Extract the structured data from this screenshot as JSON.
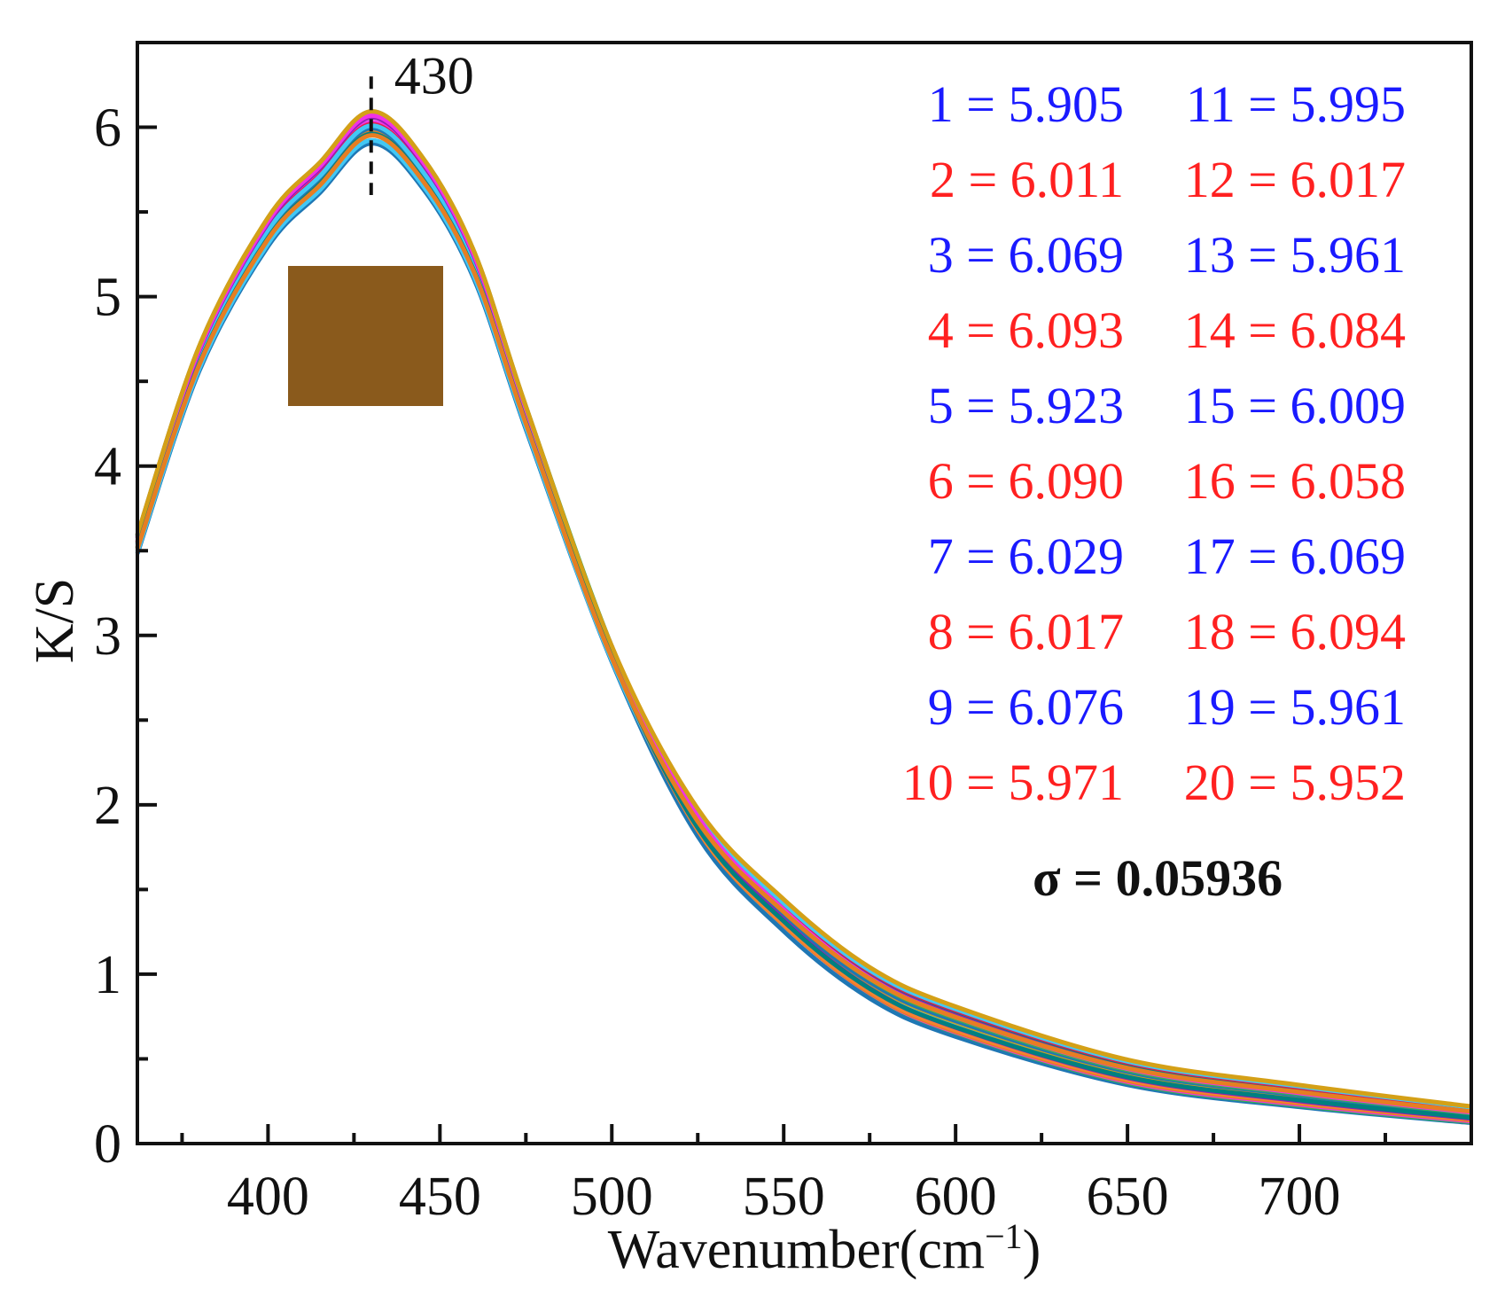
{
  "chart_data": {
    "type": "line",
    "title": "",
    "xlabel": "Wavenumber(cm",
    "xlabel_superscript": "−1",
    "xlabel_close": ")",
    "ylabel": "K/S",
    "xlim": [
      362,
      750
    ],
    "ylim": [
      0,
      6.5
    ],
    "x_ticks": [
      400,
      450,
      500,
      550,
      600,
      650,
      700
    ],
    "y_ticks": [
      0,
      1,
      2,
      3,
      4,
      5,
      6
    ],
    "x_minor_step": 25,
    "y_minor_step": 0.5,
    "grid": false,
    "peak_annotation": {
      "x": 430,
      "label": "430"
    },
    "sigma_label": "σ = 0.05936",
    "inset_swatch": {
      "description": "fabric color sample",
      "color": "#8a5a1c"
    },
    "x": [
      362,
      380,
      400,
      415,
      430,
      445,
      460,
      475,
      500,
      525,
      550,
      575,
      600,
      650,
      700,
      750
    ],
    "base_shape": [
      3.55,
      4.65,
      5.4,
      5.72,
      6.02,
      5.75,
      5.2,
      4.3,
      2.9,
      1.9,
      1.35,
      0.95,
      0.72,
      0.42,
      0.28,
      0.17
    ],
    "series": [
      {
        "name": "1",
        "peak": 5.905,
        "color": "#1a1aff"
      },
      {
        "name": "2",
        "peak": 6.011,
        "color": "#ff2020"
      },
      {
        "name": "3",
        "peak": 6.069,
        "color": "#1a1aff"
      },
      {
        "name": "4",
        "peak": 6.093,
        "color": "#ff2020"
      },
      {
        "name": "5",
        "peak": 5.923,
        "color": "#1a1aff"
      },
      {
        "name": "6",
        "peak": 6.09,
        "color": "#ff2020"
      },
      {
        "name": "7",
        "peak": 6.029,
        "color": "#1a1aff"
      },
      {
        "name": "8",
        "peak": 6.017,
        "color": "#ff2020"
      },
      {
        "name": "9",
        "peak": 6.076,
        "color": "#1a1aff"
      },
      {
        "name": "10",
        "peak": 5.971,
        "color": "#ff2020"
      },
      {
        "name": "11",
        "peak": 5.995,
        "color": "#1a1aff"
      },
      {
        "name": "12",
        "peak": 6.017,
        "color": "#ff2020"
      },
      {
        "name": "13",
        "peak": 5.961,
        "color": "#1a1aff"
      },
      {
        "name": "14",
        "peak": 6.084,
        "color": "#ff2020"
      },
      {
        "name": "15",
        "peak": 6.009,
        "color": "#1a1aff"
      },
      {
        "name": "16",
        "peak": 6.058,
        "color": "#ff2020"
      },
      {
        "name": "17",
        "peak": 6.069,
        "color": "#1a1aff"
      },
      {
        "name": "18",
        "peak": 6.094,
        "color": "#ff2020"
      },
      {
        "name": "19",
        "peak": 5.961,
        "color": "#1a1aff"
      },
      {
        "name": "20",
        "peak": 5.952,
        "color": "#ff2020"
      }
    ],
    "legend": [
      {
        "text": "1 = 5.905",
        "color": "#1a1aff"
      },
      {
        "text": "2 = 6.011",
        "color": "#ff2020"
      },
      {
        "text": "3 = 6.069",
        "color": "#1a1aff"
      },
      {
        "text": "4 = 6.093",
        "color": "#ff2020"
      },
      {
        "text": "5 = 5.923",
        "color": "#1a1aff"
      },
      {
        "text": "6 = 6.090",
        "color": "#ff2020"
      },
      {
        "text": "7 = 6.029",
        "color": "#1a1aff"
      },
      {
        "text": "8 = 6.017",
        "color": "#ff2020"
      },
      {
        "text": "9 = 6.076",
        "color": "#1a1aff"
      },
      {
        "text": "10 = 5.971",
        "color": "#ff2020"
      },
      {
        "text": "11 = 5.995",
        "color": "#1a1aff"
      },
      {
        "text": "12 = 6.017",
        "color": "#ff2020"
      },
      {
        "text": "13 = 5.961",
        "color": "#1a1aff"
      },
      {
        "text": "14 = 6.084",
        "color": "#ff2020"
      },
      {
        "text": "15 = 6.009",
        "color": "#1a1aff"
      },
      {
        "text": "16 = 6.058",
        "color": "#ff2020"
      },
      {
        "text": "17 = 6.069",
        "color": "#1a1aff"
      },
      {
        "text": "18 = 6.094",
        "color": "#ff2020"
      },
      {
        "text": "19 = 5.961",
        "color": "#1a1aff"
      },
      {
        "text": "20 = 5.952",
        "color": "#ff2020"
      }
    ],
    "legend_placement": "top-right",
    "line_palette": [
      "#1f77b4",
      "#e6194b",
      "#f58231",
      "#3cb44b",
      "#42c8f5",
      "#911eb4",
      "#f032e6",
      "#d4a017",
      "#008080",
      "#e67e22"
    ]
  }
}
